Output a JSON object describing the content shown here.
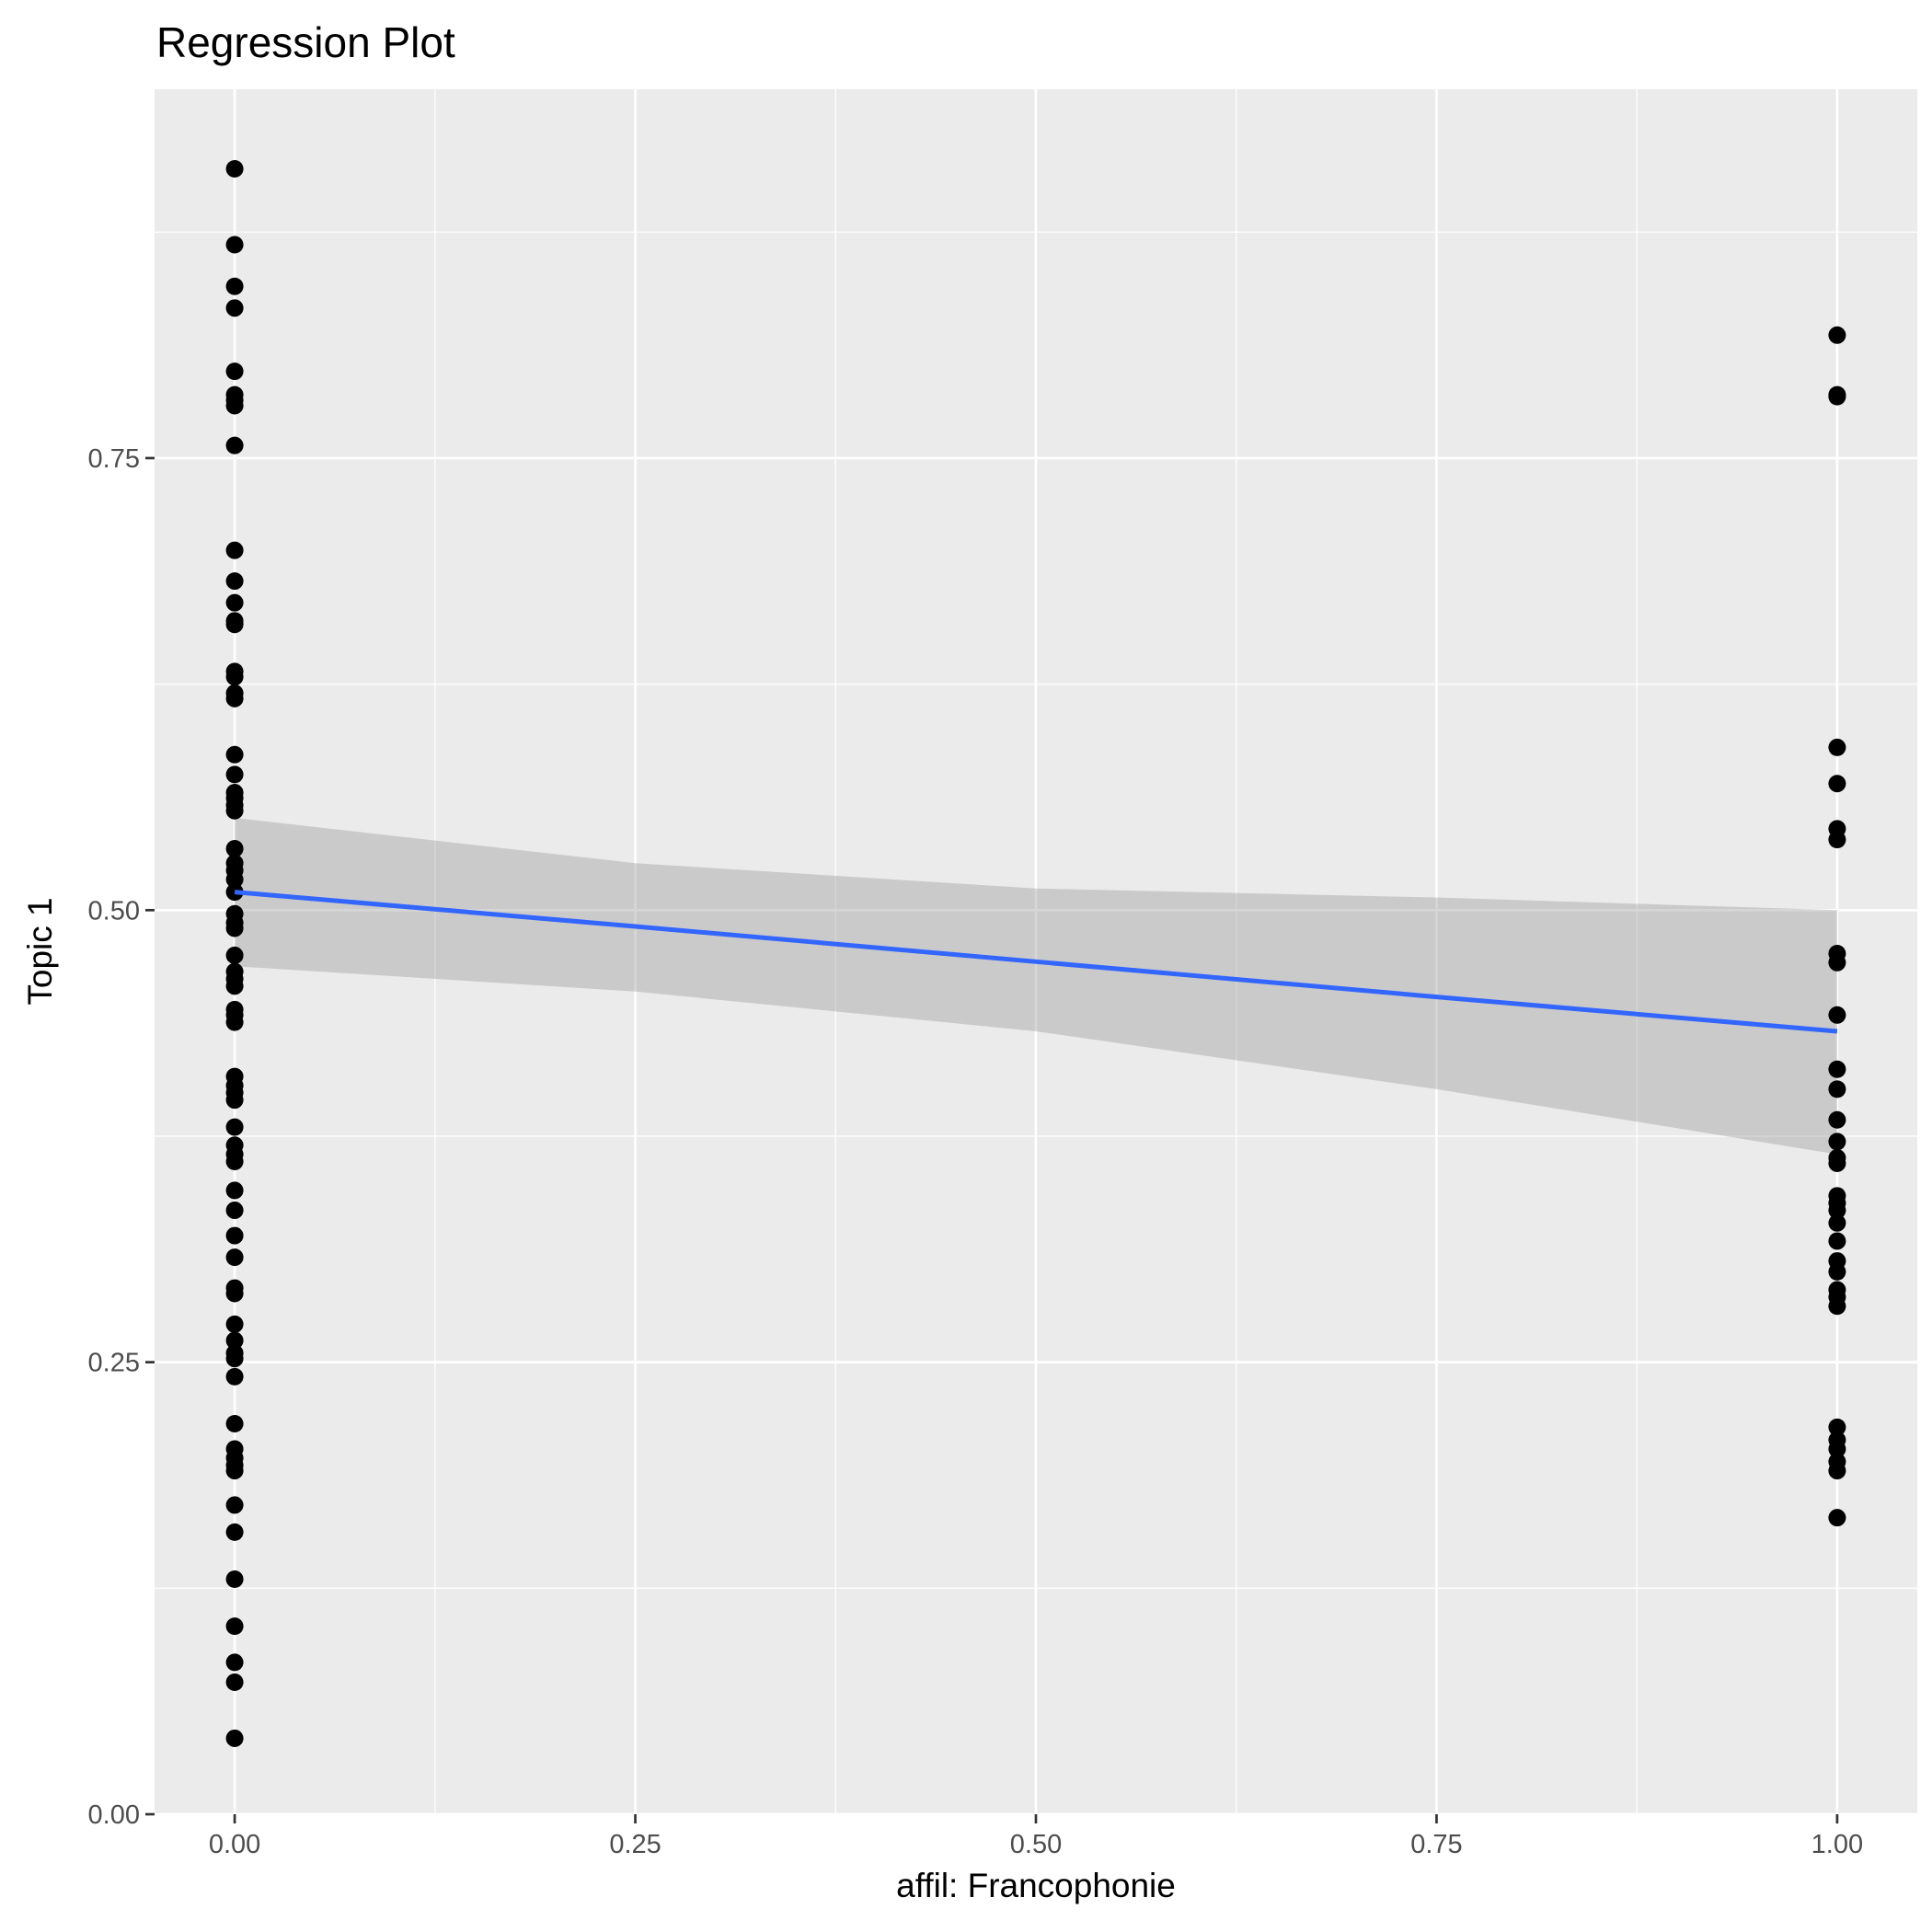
{
  "chart_data": {
    "type": "scatter",
    "title": "Regression Plot",
    "xlabel": "affil: Francophonie",
    "ylabel": "Topic 1",
    "xlim": [
      -0.05,
      1.05
    ],
    "ylim": [
      0,
      0.954
    ],
    "xticks": [
      0,
      0.25,
      0.5,
      0.75,
      1
    ],
    "xtick_labels": [
      "0.00",
      "0.25",
      "0.50",
      "0.75",
      "1.00"
    ],
    "yticks": [
      0,
      0.25,
      0.5,
      0.75
    ],
    "ytick_labels": [
      "0.00",
      "0.25",
      "0.50",
      "0.75"
    ],
    "grid": true,
    "colors": {
      "panel": "#ebebeb",
      "grid": "#ffffff",
      "points": "#000000",
      "line": "#3366ff",
      "ribbon": "#999999"
    },
    "series": [
      {
        "name": "x=0",
        "x": 0,
        "y": [
          0.91,
          0.868,
          0.845,
          0.833,
          0.798,
          0.785,
          0.782,
          0.779,
          0.757,
          0.699,
          0.682,
          0.67,
          0.66,
          0.658,
          0.632,
          0.629,
          0.62,
          0.617,
          0.586,
          0.575,
          0.565,
          0.562,
          0.558,
          0.555,
          0.534,
          0.526,
          0.522,
          0.517,
          0.51,
          0.498,
          0.493,
          0.49,
          0.475,
          0.466,
          0.462,
          0.458,
          0.445,
          0.442,
          0.438,
          0.408,
          0.403,
          0.399,
          0.395,
          0.38,
          0.37,
          0.365,
          0.361,
          0.345,
          0.334,
          0.32,
          0.308,
          0.291,
          0.288,
          0.271,
          0.262,
          0.255,
          0.252,
          0.242,
          0.216,
          0.202,
          0.197,
          0.193,
          0.19,
          0.171,
          0.156,
          0.13,
          0.104,
          0.084,
          0.073,
          0.042
        ]
      },
      {
        "name": "x=1",
        "x": 1,
        "y": [
          0.818,
          0.785,
          0.784,
          0.59,
          0.57,
          0.545,
          0.539,
          0.476,
          0.471,
          0.442,
          0.412,
          0.401,
          0.384,
          0.372,
          0.363,
          0.36,
          0.342,
          0.338,
          0.334,
          0.327,
          0.317,
          0.306,
          0.3,
          0.29,
          0.286,
          0.281,
          0.214,
          0.207,
          0.202,
          0.195,
          0.19,
          0.164
        ]
      }
    ],
    "regression": {
      "x": [
        0,
        0.25,
        0.5,
        0.75,
        1
      ],
      "fit": [
        0.51,
        0.491,
        0.4715,
        0.452,
        0.433
      ],
      "ci_upper": [
        0.551,
        0.526,
        0.512,
        0.507,
        0.5
      ],
      "ci_lower": [
        0.469,
        0.455,
        0.433,
        0.401,
        0.365
      ]
    }
  }
}
